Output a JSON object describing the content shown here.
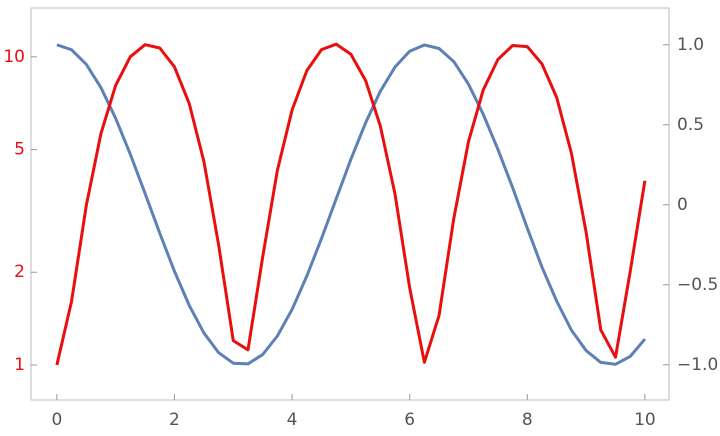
{
  "chart_data": {
    "type": "line",
    "x": [
      0,
      0.25,
      0.5,
      0.75,
      1,
      1.25,
      1.5,
      1.75,
      2,
      2.25,
      2.5,
      2.75,
      3,
      3.25,
      3.5,
      3.75,
      4,
      4.25,
      4.5,
      4.75,
      5,
      5.25,
      5.5,
      5.75,
      6,
      6.25,
      6.5,
      6.75,
      7,
      7.25,
      7.5,
      7.75,
      8,
      8.25,
      8.5,
      8.75,
      9,
      9.25,
      9.5,
      9.75,
      10
    ],
    "series": [
      {
        "color": "#e8100f",
        "axis": "y",
        "values": [
          1,
          1.61,
          3.29,
          5.64,
          8.08,
          10.01,
          10.95,
          10.68,
          9.27,
          7.06,
          4.58,
          2.46,
          1.2,
          1.12,
          2.24,
          4.28,
          6.72,
          9.01,
          10.55,
          10.99,
          10.19,
          8.38,
          5.97,
          3.59,
          1.78,
          1.02,
          1.45,
          2.99,
          5.31,
          7.8,
          9.8,
          10.88,
          10.79,
          9.48,
          7.38,
          4.87,
          2.7,
          1.3,
          1.06,
          2.01,
          3.96
        ]
      },
      {
        "color": "#5e81b5",
        "axis": "y2",
        "values": [
          1,
          0.969,
          0.878,
          0.732,
          0.54,
          0.315,
          0.071,
          -0.178,
          -0.416,
          -0.628,
          -0.801,
          -0.924,
          -0.99,
          -0.994,
          -0.936,
          -0.82,
          -0.654,
          -0.446,
          -0.211,
          0.037,
          0.284,
          0.512,
          0.709,
          0.861,
          0.96,
          0.999,
          0.977,
          0.895,
          0.754,
          0.566,
          0.347,
          0.108,
          -0.146,
          -0.39,
          -0.602,
          -0.783,
          -0.911,
          -0.985,
          -0.997,
          -0.948,
          -0.839
        ]
      }
    ],
    "xlim": [
      -0.44,
      10.41
    ],
    "xticks": [
      0,
      2,
      4,
      6,
      8,
      10
    ],
    "ylim": [
      0.77,
      14.4
    ],
    "ylog": true,
    "yticks": [
      1,
      2,
      5,
      10
    ],
    "ytick_color": "#e8100f",
    "y2lim": [
      -1.22,
      1.23
    ],
    "y2ticks": [
      {
        "value": 1,
        "label": "1.0"
      },
      0.5,
      0,
      {
        "value": -0.5,
        "label": "−0.5"
      },
      {
        "value": -1,
        "label": "−1.0"
      }
    ]
  }
}
